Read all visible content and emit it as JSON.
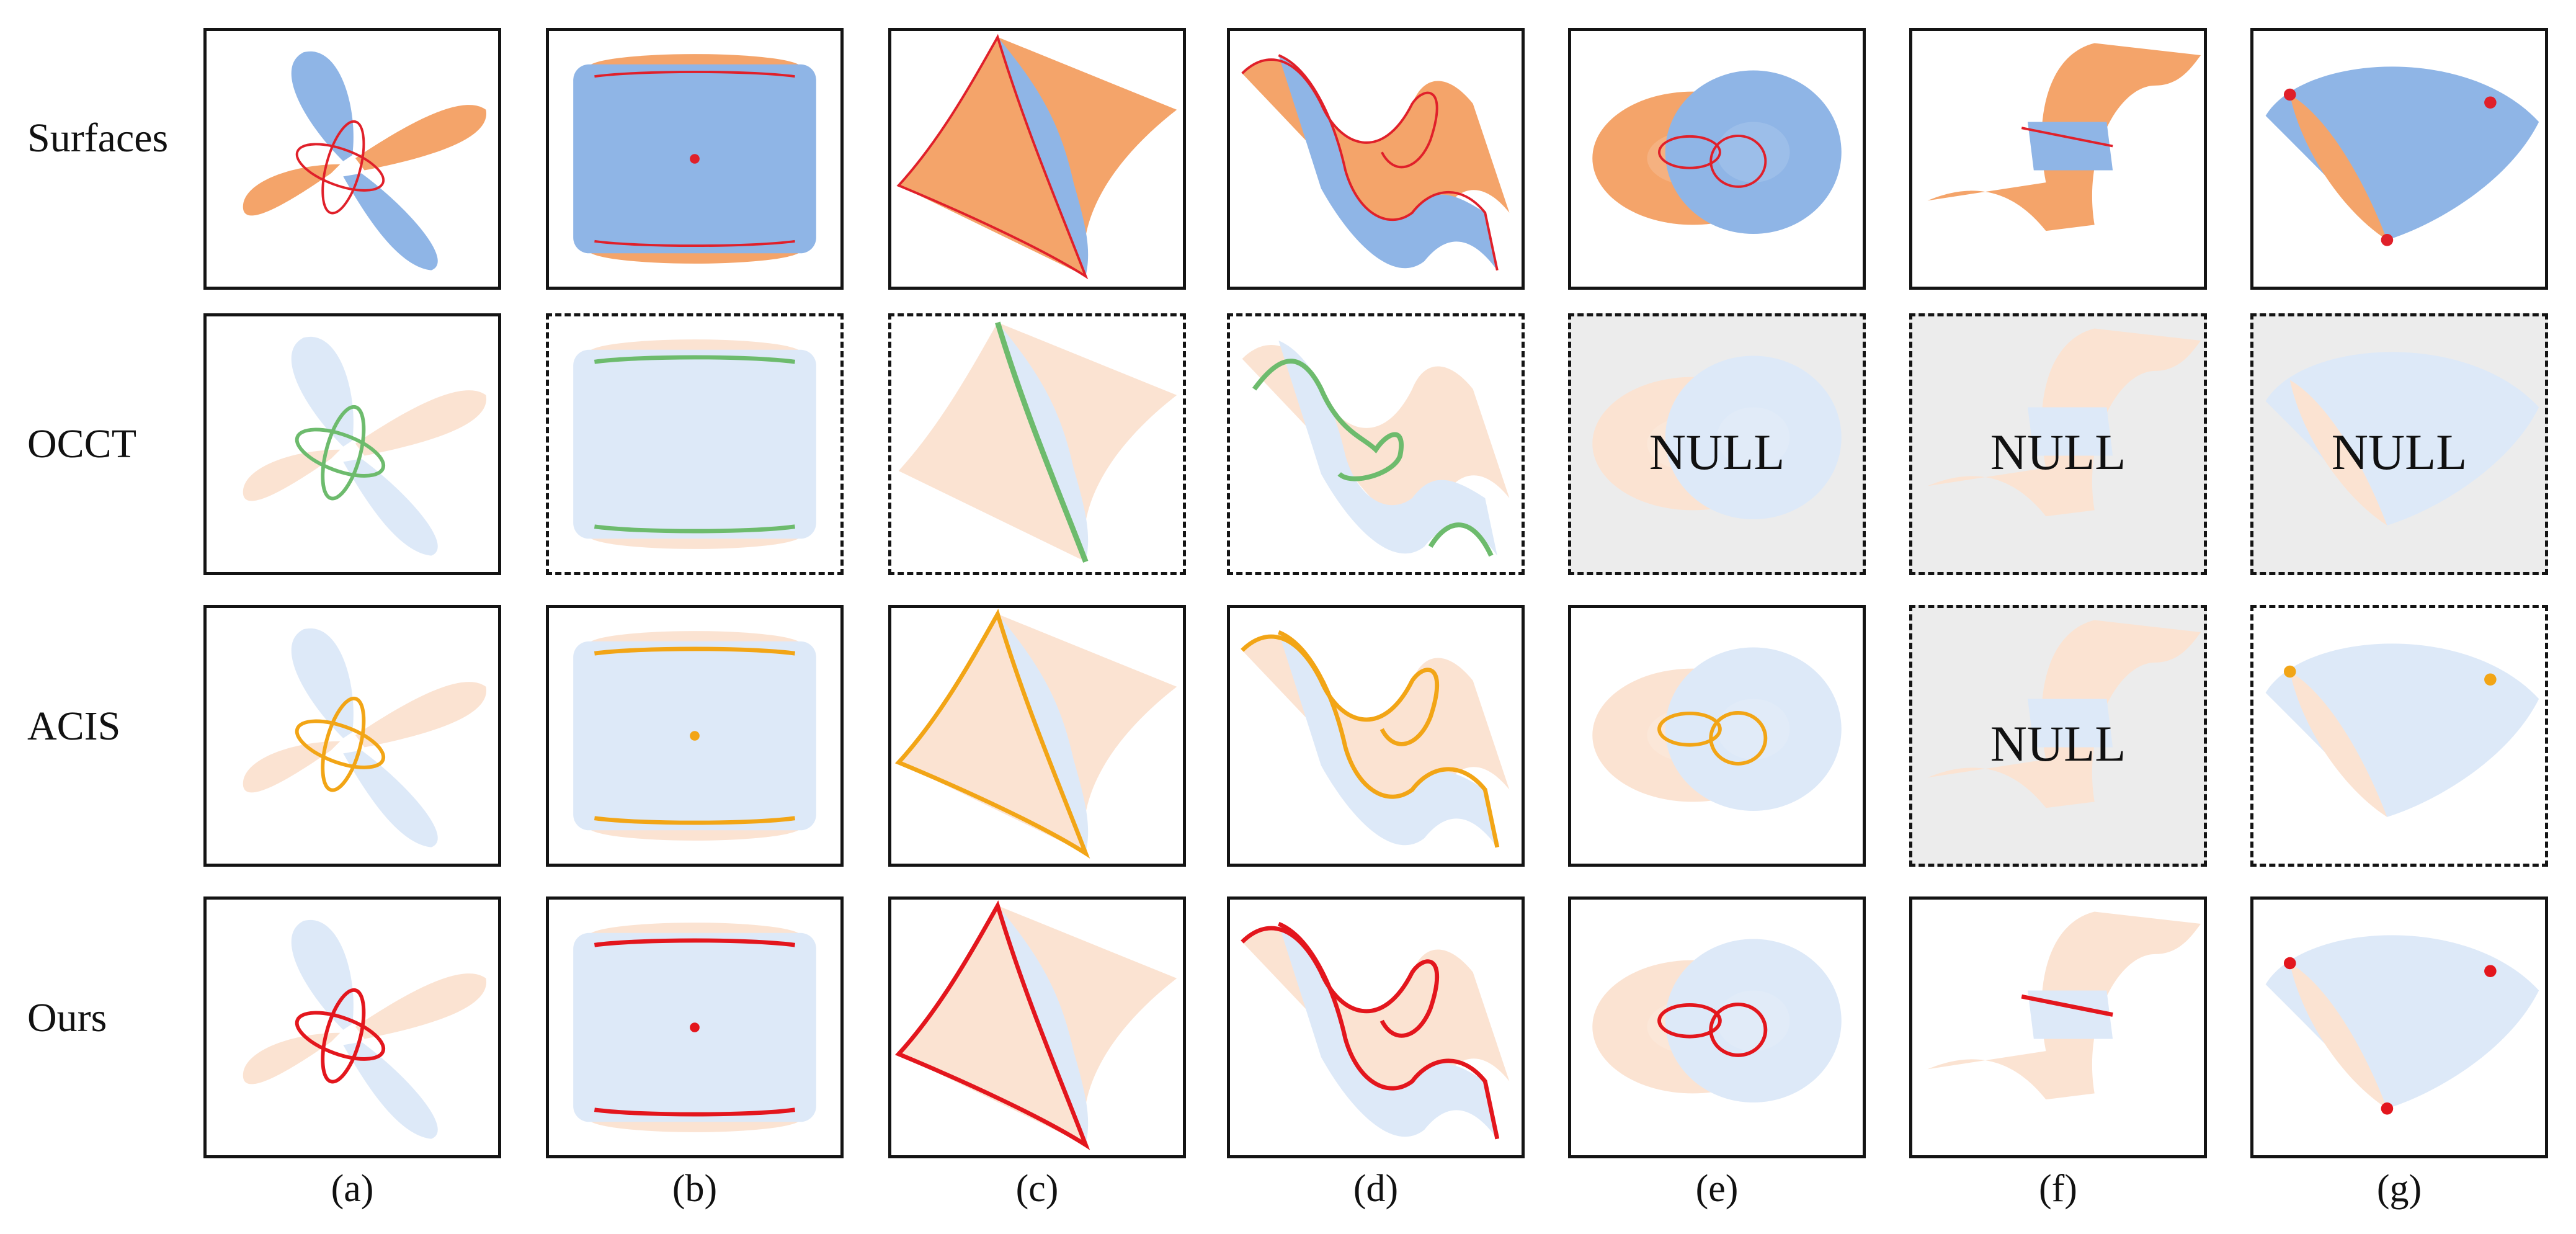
{
  "rows": [
    {
      "label": "Surfaces"
    },
    {
      "label": "OCCT"
    },
    {
      "label": "ACIS"
    },
    {
      "label": "Ours"
    }
  ],
  "columns": [
    "(a)",
    "(b)",
    "(c)",
    "(d)",
    "(e)",
    "(f)",
    "(g)"
  ],
  "null_label": "NULL",
  "cells": {
    "occt": [
      "ok",
      "failed",
      "failed",
      "failed",
      "null",
      "null",
      "null"
    ],
    "acis": [
      "ok",
      "ok",
      "ok",
      "ok",
      "ok",
      "null",
      "failed"
    ]
  },
  "colors": {
    "surface_orange": "#f4a46a",
    "surface_blue": "#8fb5e6",
    "faded_orange": "#fbe3d2",
    "faded_blue": "#dde9f8",
    "intersection_surfaces": "#e0202a",
    "occt_curve": "#6dbb6d",
    "acis_curve": "#f2a516",
    "ours_curve": "#e3161d",
    "null_background": "#ececec"
  }
}
